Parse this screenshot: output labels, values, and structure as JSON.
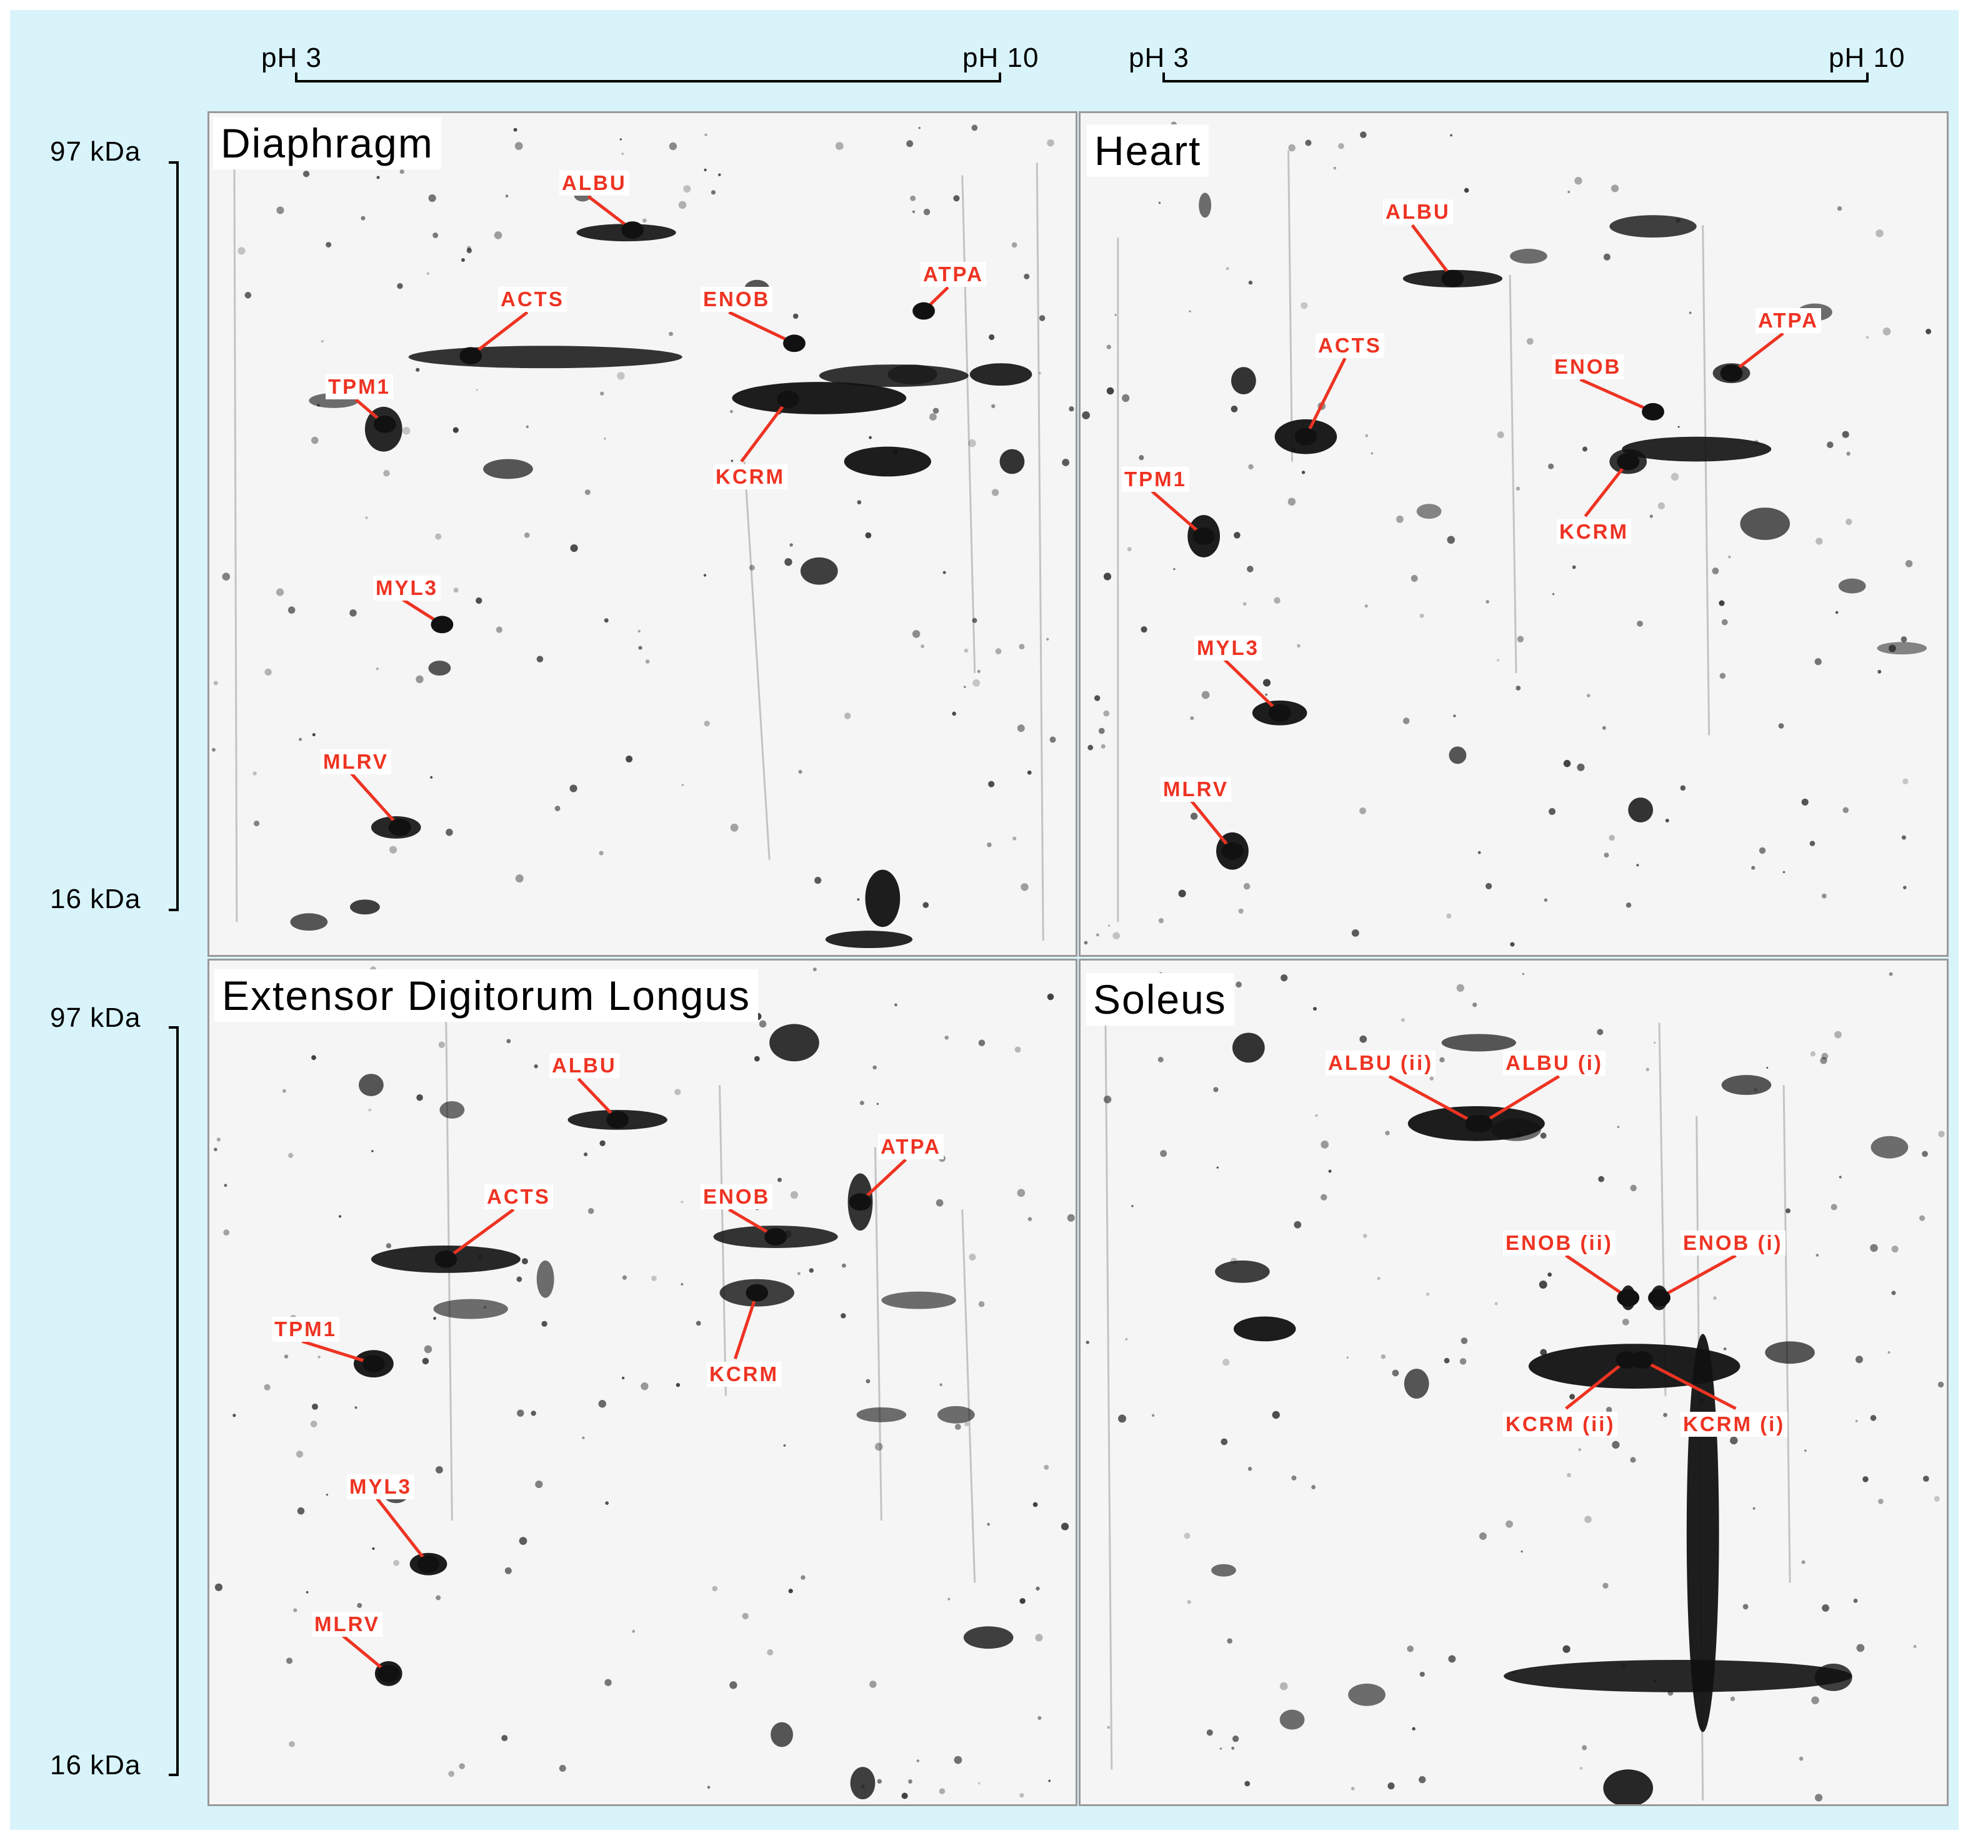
{
  "figure": {
    "ph_axis": {
      "low": "pH 3",
      "high": "pH 10"
    },
    "mw_axis": {
      "high": "97 kDa",
      "low": "16 kDa"
    },
    "colors": {
      "label": "#ee3322",
      "background": "#d8f4fa",
      "gel": "#f5f5f5",
      "spot": "#111111"
    },
    "panels": [
      {
        "key": "diaphragm",
        "title": "Diaphragm",
        "labels": [
          {
            "text": "ALBU",
            "target": "albumin-spot"
          },
          {
            "text": "ACTS",
            "target": "actin-spot"
          },
          {
            "text": "ENOB",
            "target": "beta-enolase-spot"
          },
          {
            "text": "ATPA",
            "target": "atp-synthase-alpha-spot"
          },
          {
            "text": "TPM1",
            "target": "tropomyosin-spot"
          },
          {
            "text": "KCRM",
            "target": "creatine-kinase-spot"
          },
          {
            "text": "MYL3",
            "target": "myosin-light-chain-3-spot"
          },
          {
            "text": "MLRV",
            "target": "myosin-regulatory-light-chain-spot"
          }
        ]
      },
      {
        "key": "heart",
        "title": "Heart",
        "labels": [
          {
            "text": "ALBU",
            "target": "albumin-spot"
          },
          {
            "text": "ATPA",
            "target": "atp-synthase-alpha-spot"
          },
          {
            "text": "ACTS",
            "target": "actin-spot"
          },
          {
            "text": "ENOB",
            "target": "beta-enolase-spot"
          },
          {
            "text": "TPM1",
            "target": "tropomyosin-spot"
          },
          {
            "text": "KCRM",
            "target": "creatine-kinase-spot"
          },
          {
            "text": "MYL3",
            "target": "myosin-light-chain-3-spot"
          },
          {
            "text": "MLRV",
            "target": "myosin-regulatory-light-chain-spot"
          }
        ]
      },
      {
        "key": "edl",
        "title": "Extensor Digitorum Longus",
        "labels": [
          {
            "text": "ALBU",
            "target": "albumin-spot"
          },
          {
            "text": "ATPA",
            "target": "atp-synthase-alpha-spot"
          },
          {
            "text": "ACTS",
            "target": "actin-spot"
          },
          {
            "text": "ENOB",
            "target": "beta-enolase-spot"
          },
          {
            "text": "TPM1",
            "target": "tropomyosin-spot"
          },
          {
            "text": "KCRM",
            "target": "creatine-kinase-spot"
          },
          {
            "text": "MYL3",
            "target": "myosin-light-chain-3-spot"
          },
          {
            "text": "MLRV",
            "target": "myosin-regulatory-light-chain-spot"
          }
        ]
      },
      {
        "key": "soleus",
        "title": "Soleus",
        "labels": [
          {
            "text": "ALBU (ii)",
            "target": "albumin-isoform-ii-spot"
          },
          {
            "text": "ALBU (i)",
            "target": "albumin-isoform-i-spot"
          },
          {
            "text": "ENOB (ii)",
            "target": "beta-enolase-isoform-ii-spot"
          },
          {
            "text": "ENOB (i)",
            "target": "beta-enolase-isoform-i-spot"
          },
          {
            "text": "KCRM (ii)",
            "target": "creatine-kinase-isoform-ii-spot"
          },
          {
            "text": "KCRM (i)",
            "target": "creatine-kinase-isoform-i-spot"
          }
        ]
      }
    ]
  }
}
